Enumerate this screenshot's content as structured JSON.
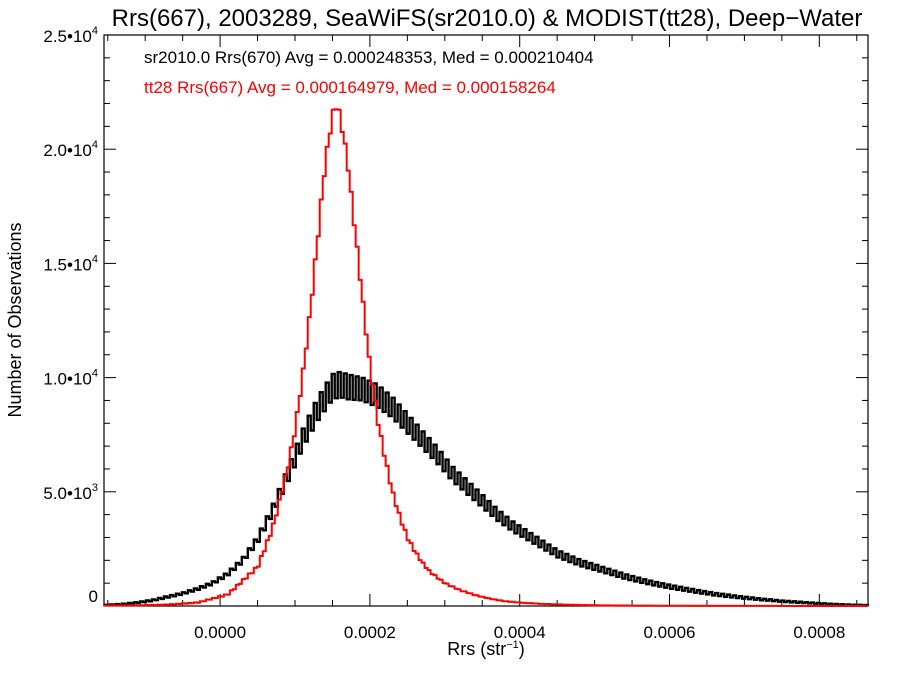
{
  "chart_data": {
    "type": "histogram",
    "title": "Rrs(667), 2003289, SeaWiFS(sr2010.0) & MODIST(tt28), Deep−Water",
    "xlabel": "Rrs (str",
    "xlabel_sup": "−1",
    "xlabel_tail": ")",
    "ylabel": "Number of Observations",
    "xlim": [
      -0.000155,
      0.000865
    ],
    "ylim": [
      0,
      25000
    ],
    "grid": false,
    "legend_position": "top-left",
    "x_ticks": [
      0.0,
      0.0002,
      0.0004,
      0.0006,
      0.0008
    ],
    "x_tick_labels": [
      "0.0000",
      "0.0002",
      "0.0004",
      "0.0006",
      "0.0008"
    ],
    "y_ticks": [
      0,
      5000,
      10000,
      15000,
      20000,
      25000
    ],
    "y_tick_labels": [
      {
        "base": "0",
        "exp": ""
      },
      {
        "base": "5.0•10",
        "exp": "3"
      },
      {
        "base": "1.0•10",
        "exp": "4"
      },
      {
        "base": "1.5•10",
        "exp": "4"
      },
      {
        "base": "2.0•10",
        "exp": "4"
      },
      {
        "base": "2.5•10",
        "exp": "4"
      }
    ],
    "series": [
      {
        "name": "sr2010.0 Rrs(670)",
        "color": "#000000",
        "annotation": "sr2010.0 Rrs(670) Avg = 0.000248353, Med = 0.000210404",
        "x": [
          -0.000155,
          -0.00013,
          -0.00011,
          -9e-05,
          -7e-05,
          -5e-05,
          -3e-05,
          -1e-05,
          1e-05,
          3e-05,
          5e-05,
          7e-05,
          9e-05,
          0.00011,
          0.00013,
          0.00015,
          0.00016,
          0.00017,
          0.00019,
          0.00021,
          0.00023,
          0.00025,
          0.00027,
          0.00029,
          0.00031,
          0.00033,
          0.00035,
          0.00037,
          0.00039,
          0.00041,
          0.00043,
          0.00045,
          0.00048,
          0.00051,
          0.00054,
          0.00057,
          0.0006,
          0.00063,
          0.00066,
          0.00069,
          0.00072,
          0.00075,
          0.00078,
          0.00081,
          0.00084,
          0.000865
        ],
        "y": [
          50,
          80,
          150,
          250,
          400,
          550,
          750,
          1000,
          1400,
          2000,
          2900,
          4200,
          5700,
          7300,
          8600,
          9600,
          9700,
          9600,
          9500,
          9200,
          8700,
          8000,
          7300,
          6600,
          5800,
          5200,
          4600,
          4000,
          3500,
          3100,
          2700,
          2300,
          1900,
          1600,
          1300,
          1050,
          850,
          680,
          520,
          400,
          300,
          210,
          150,
          90,
          50,
          30
        ],
        "noise_amplitude": [
          0,
          20,
          20,
          30,
          40,
          40,
          50,
          60,
          80,
          100,
          150,
          200,
          300,
          400,
          500,
          550,
          550,
          550,
          500,
          500,
          450,
          420,
          380,
          350,
          320,
          300,
          280,
          250,
          220,
          200,
          180,
          160,
          140,
          120,
          110,
          90,
          80,
          70,
          60,
          50,
          40,
          30,
          25,
          20,
          15,
          10
        ]
      },
      {
        "name": "tt28 Rrs(667)",
        "color": "#ff0000",
        "annotation": "tt28 Rrs(667) Avg = 0.000164979, Med = 0.000158264",
        "x": [
          -0.000155,
          -0.00011,
          -7e-05,
          -3e-05,
          1e-05,
          5e-05,
          7e-05,
          9e-05,
          0.0001,
          0.00011,
          0.00012,
          0.00013,
          0.00014,
          0.00015,
          0.000155,
          0.00016,
          0.00017,
          0.00018,
          0.00019,
          0.0002,
          0.00021,
          0.00022,
          0.00023,
          0.00024,
          0.00025,
          0.00026,
          0.00027,
          0.00028,
          0.0003,
          0.00032,
          0.00034,
          0.00036,
          0.00038,
          0.0004,
          0.00043,
          0.00046,
          0.0005,
          0.00055,
          0.0006,
          0.0007,
          0.0008,
          0.000865
        ],
        "y": [
          20,
          30,
          60,
          150,
          500,
          1700,
          3400,
          6000,
          7700,
          10000,
          12800,
          16000,
          19300,
          21500,
          21900,
          21500,
          19500,
          16500,
          13500,
          10500,
          8200,
          6500,
          5000,
          3900,
          3000,
          2400,
          1900,
          1500,
          1000,
          700,
          480,
          320,
          210,
          150,
          90,
          60,
          30,
          15,
          10,
          5,
          0,
          0
        ],
        "noise_amplitude": [
          0,
          0,
          10,
          15,
          30,
          60,
          80,
          100,
          100,
          120,
          130,
          140,
          150,
          150,
          150,
          150,
          140,
          130,
          120,
          110,
          100,
          90,
          80,
          70,
          60,
          50,
          40,
          30,
          25,
          20,
          15,
          10,
          8,
          6,
          5,
          4,
          3,
          2,
          1,
          0,
          0,
          0
        ]
      }
    ]
  }
}
